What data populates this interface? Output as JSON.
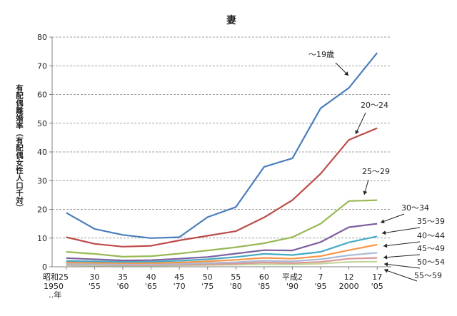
{
  "chart_data": {
    "type": "line",
    "title": "妻",
    "ylabel": "有配偶離婚率（有配偶女性人口千対）",
    "ylim": [
      0,
      80
    ],
    "yticks": [
      0,
      10,
      20,
      30,
      40,
      50,
      60,
      70,
      80
    ],
    "grid": "horizontal-dashed",
    "x_ticks": [
      {
        "top": "昭和25",
        "bottom": "1950"
      },
      {
        "top": "30",
        "bottom": "'55"
      },
      {
        "top": "35",
        "bottom": "'60"
      },
      {
        "top": "40",
        "bottom": "'65"
      },
      {
        "top": "45",
        "bottom": "'70"
      },
      {
        "top": "50",
        "bottom": "'75"
      },
      {
        "top": "55",
        "bottom": "'80"
      },
      {
        "top": "60",
        "bottom": "'85"
      },
      {
        "top": "平成2",
        "bottom": "'90"
      },
      {
        "top": "7",
        "bottom": "'95"
      },
      {
        "top": "12",
        "bottom": "2000"
      },
      {
        "top": "17",
        "bottom": "'05"
      }
    ],
    "x_note": "‥年",
    "x": [
      1950,
      1955,
      1960,
      1965,
      1970,
      1975,
      1980,
      1985,
      1990,
      1995,
      2000,
      2005
    ],
    "series": [
      {
        "name": "～19歳",
        "color": "#4a7ebb",
        "values": [
          18.8,
          13.2,
          11.1,
          10.0,
          10.3,
          17.3,
          20.8,
          34.8,
          37.8,
          55.2,
          62.3,
          74.5
        ]
      },
      {
        "name": "20～24",
        "color": "#be4b48",
        "values": [
          10.3,
          8.0,
          7.0,
          7.3,
          9.2,
          10.8,
          12.4,
          17.2,
          23.2,
          32.4,
          44.2,
          48.3
        ]
      },
      {
        "name": "25～29",
        "color": "#98b954",
        "values": [
          5.2,
          4.5,
          3.5,
          3.7,
          4.6,
          5.7,
          6.8,
          8.2,
          10.3,
          15.0,
          22.9,
          23.2
        ]
      },
      {
        "name": "30～34",
        "color": "#7d60a0",
        "values": [
          3.0,
          2.6,
          2.2,
          2.3,
          2.8,
          3.4,
          4.6,
          5.8,
          5.7,
          8.6,
          13.8,
          15.0
        ]
      },
      {
        "name": "35～39",
        "color": "#46aac5",
        "values": [
          2.0,
          1.9,
          1.7,
          1.8,
          2.1,
          2.6,
          3.4,
          4.5,
          4.1,
          5.2,
          8.5,
          10.6
        ]
      },
      {
        "name": "40～44",
        "color": "#f79646",
        "values": [
          1.5,
          1.4,
          1.3,
          1.3,
          1.5,
          1.9,
          2.4,
          3.1,
          2.8,
          3.7,
          5.8,
          7.7
        ]
      },
      {
        "name": "45～49",
        "color": "#aabad7",
        "values": [
          1.0,
          0.9,
          0.9,
          0.9,
          1.0,
          1.3,
          1.6,
          2.1,
          1.9,
          2.6,
          4.0,
          4.9
        ]
      },
      {
        "name": "50～54",
        "color": "#d99694",
        "values": [
          0.7,
          0.7,
          0.6,
          0.6,
          0.7,
          0.9,
          1.1,
          1.5,
          1.3,
          1.7,
          2.8,
          3.1
        ]
      },
      {
        "name": "55～59",
        "color": "#c3d69b",
        "values": [
          0.5,
          0.4,
          0.4,
          0.4,
          0.5,
          0.6,
          0.7,
          0.9,
          0.8,
          1.1,
          1.7,
          1.8
        ]
      }
    ]
  }
}
